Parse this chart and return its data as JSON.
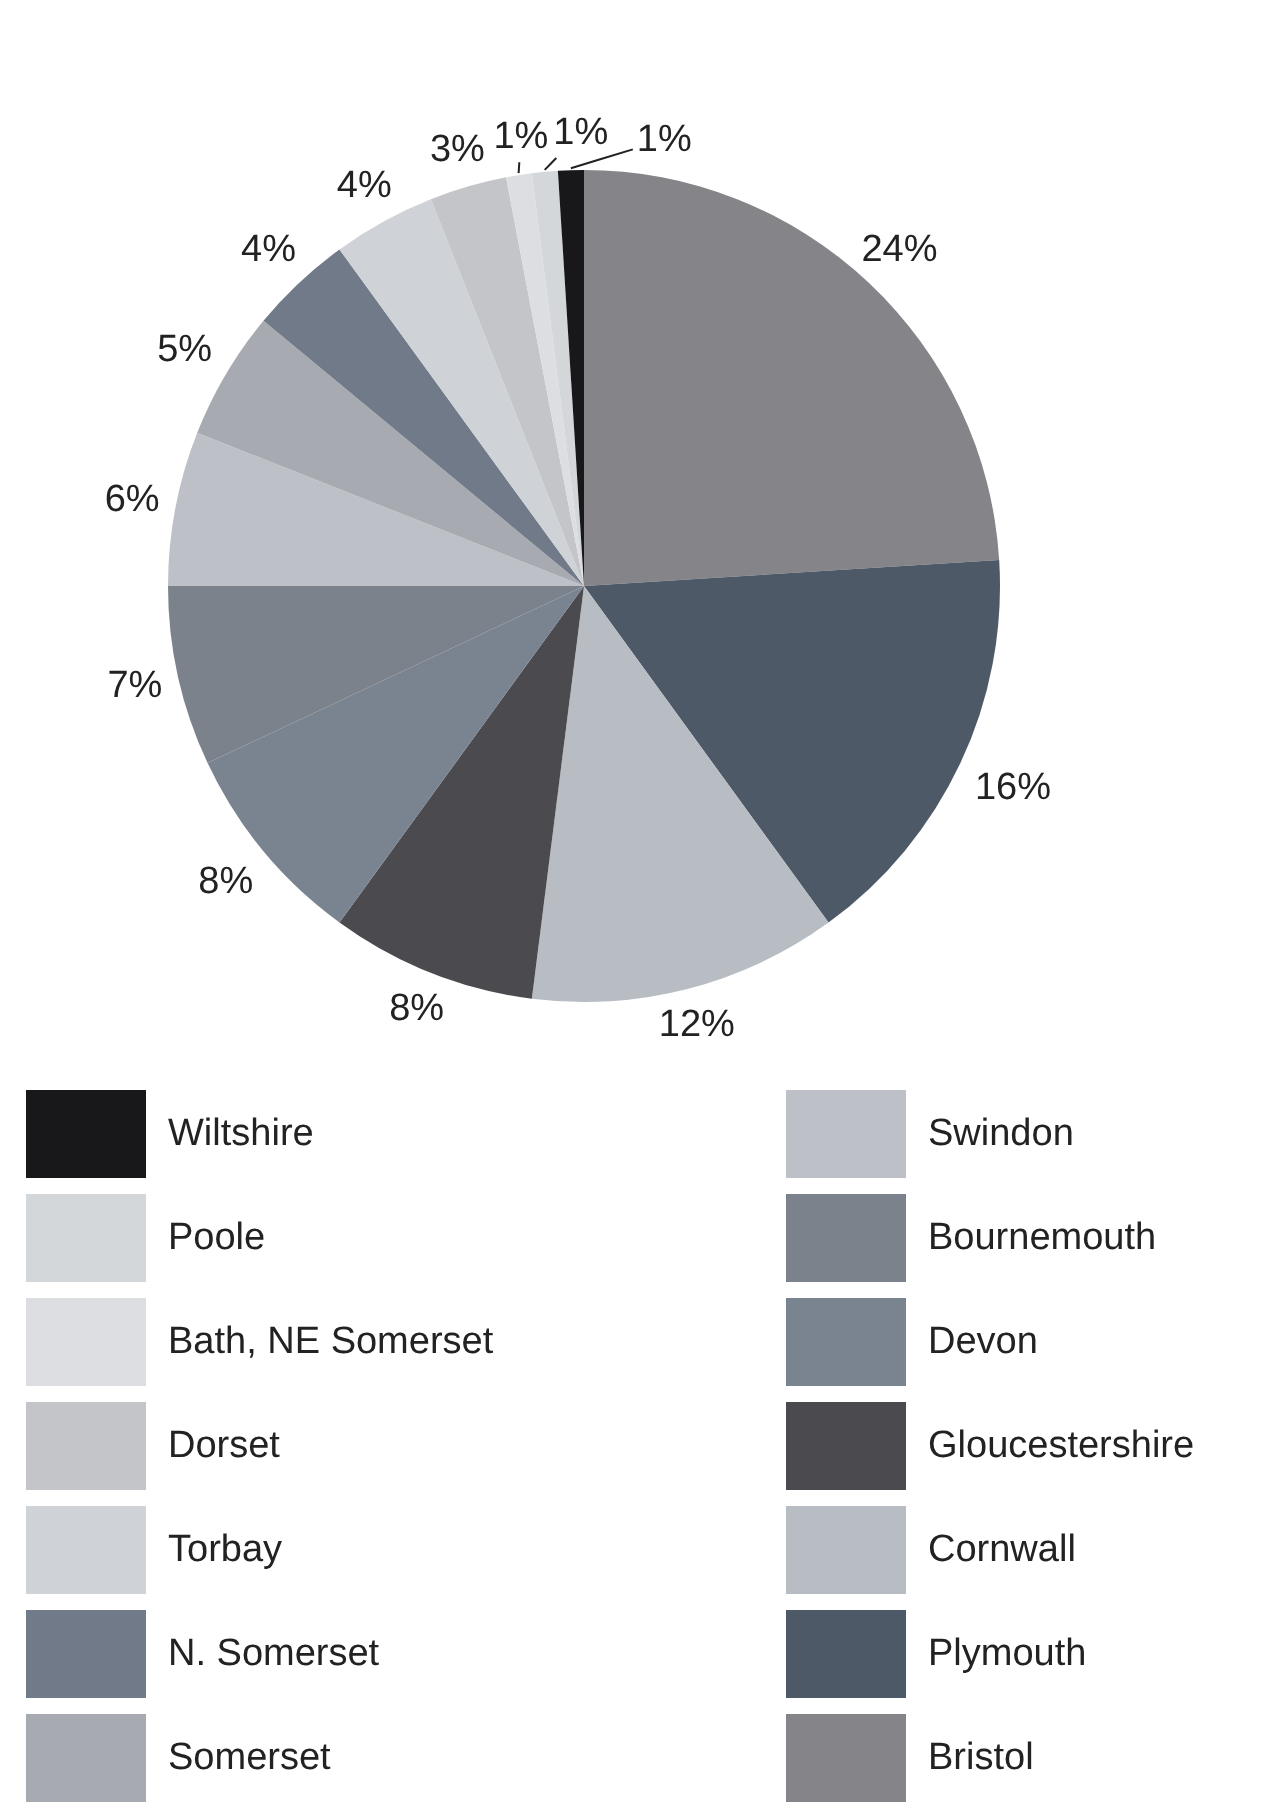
{
  "chart_data": {
    "type": "pie",
    "categories": [
      "Bristol",
      "Plymouth",
      "Cornwall",
      "Gloucestershire",
      "Devon",
      "Bournemouth",
      "Swindon",
      "Somerset",
      "N. Somerset",
      "Torbay",
      "Dorset",
      "Bath, NE Somerset",
      "Poole",
      "Wiltshire"
    ],
    "values": [
      24,
      16,
      12,
      8,
      8,
      7,
      6,
      5,
      4,
      4,
      3,
      1,
      1,
      1
    ],
    "value_labels": [
      "24%",
      "16%",
      "12%",
      "8%",
      "8%",
      "7%",
      "6%",
      "5%",
      "4%",
      "4%",
      "3%",
      "1%",
      "1%",
      "1%"
    ],
    "colors": [
      "#858489",
      "#4e5968",
      "#b8bdc3",
      "#4b4a4f",
      "#7a8390",
      "#7b828c",
      "#bdc1c7",
      "#a7abb1",
      "#717a88",
      "#cfd2d6",
      "#c4c5c8",
      "#dcdee1",
      "#d4d7da",
      "#18181a"
    ],
    "legend": "bottom"
  }
}
